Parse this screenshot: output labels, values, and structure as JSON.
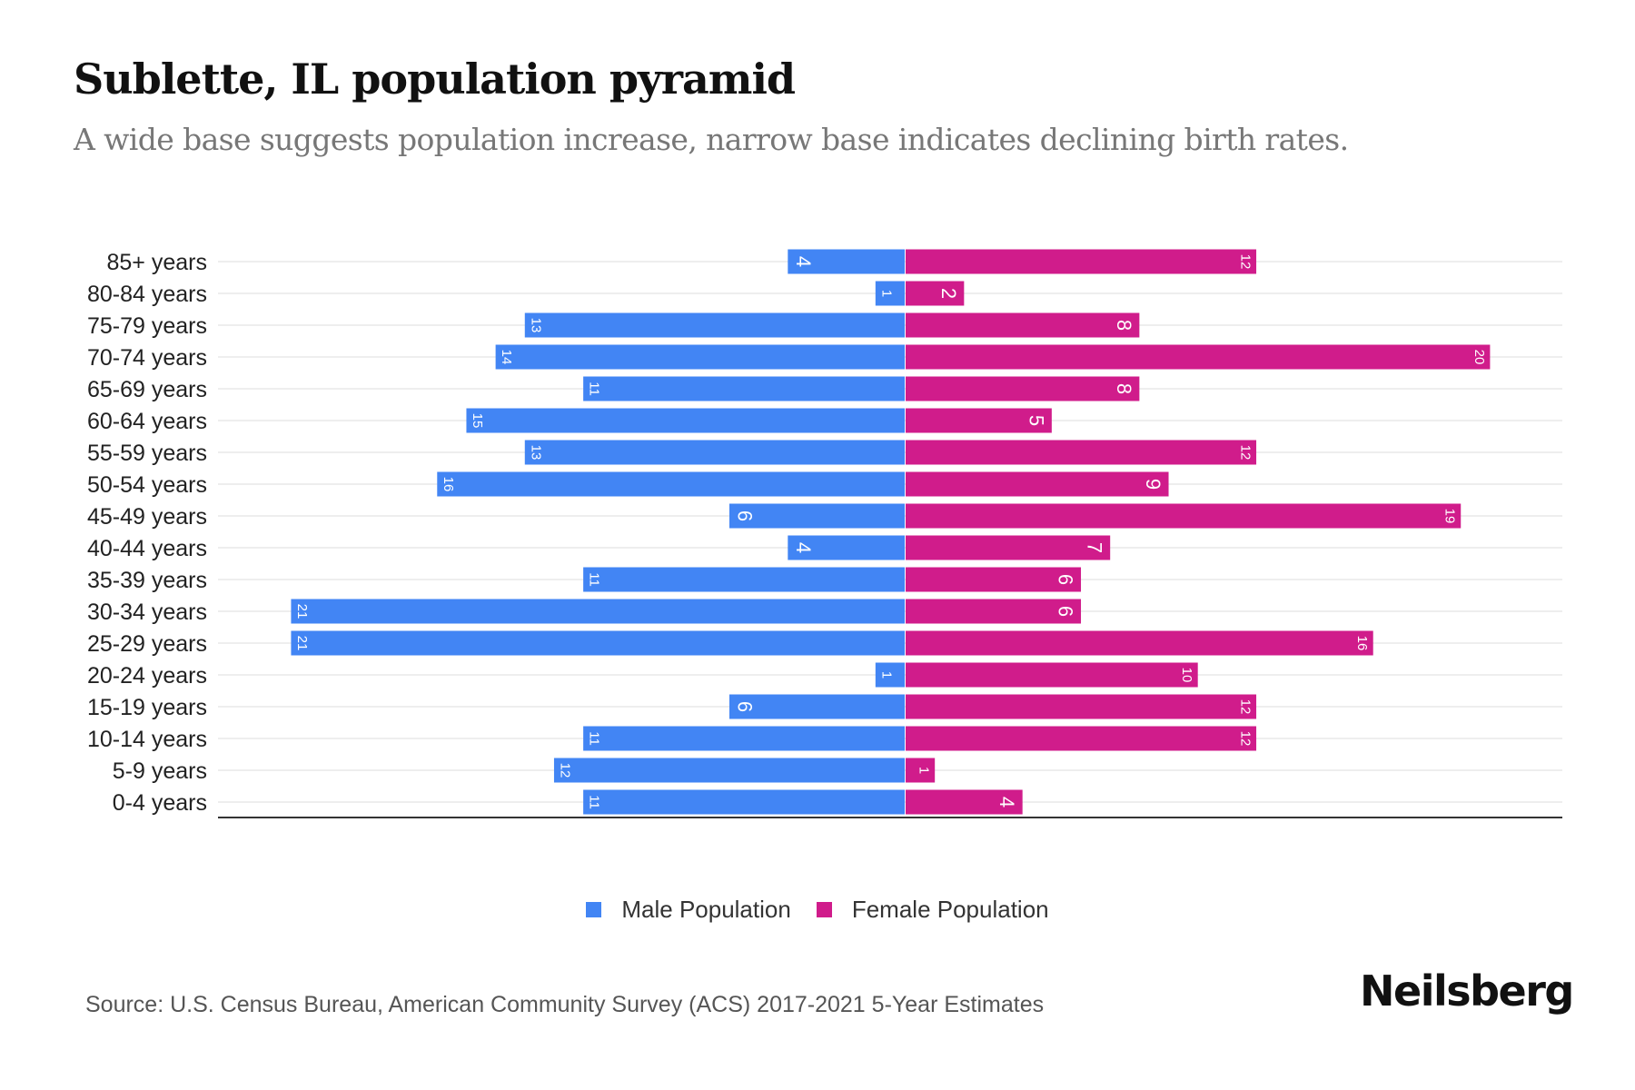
{
  "title": "Sublette, IL population pyramid",
  "subtitle": "A wide base suggests population increase, narrow base indicates declining birth rates.",
  "source": "Source: U.S. Census Bureau, American Community Survey (ACS) 2017-2021 5-Year Estimates",
  "brand": "Neilsberg",
  "colors": {
    "male": "#4285f4",
    "female": "#d01c8b",
    "grid": "#eeeeee",
    "axis": "#333333",
    "label": "#222222"
  },
  "chart_data": {
    "type": "bar",
    "orientation": "horizontal-pyramid",
    "title": "Sublette, IL population pyramid",
    "subtitle": "A wide base suggests population increase, narrow base indicates declining birth rates.",
    "xlabel": "",
    "ylabel": "",
    "xlim": [
      -21,
      21
    ],
    "grid": true,
    "legend_position": "bottom",
    "categories": [
      "85+ years",
      "80-84 years",
      "75-79 years",
      "70-74 years",
      "65-69 years",
      "60-64 years",
      "55-59 years",
      "50-54 years",
      "45-49 years",
      "40-44 years",
      "35-39 years",
      "30-34 years",
      "25-29 years",
      "20-24 years",
      "15-19 years",
      "10-14 years",
      "5-9 years",
      "0-4 years"
    ],
    "series": [
      {
        "name": "Male Population",
        "side": "left",
        "values": [
          4,
          1,
          13,
          14,
          11,
          15,
          13,
          16,
          6,
          4,
          11,
          21,
          21,
          1,
          6,
          11,
          12,
          11
        ]
      },
      {
        "name": "Female Population",
        "side": "right",
        "values": [
          12,
          2,
          8,
          20,
          8,
          5,
          12,
          9,
          19,
          7,
          6,
          6,
          16,
          10,
          12,
          12,
          1,
          4
        ]
      }
    ]
  }
}
